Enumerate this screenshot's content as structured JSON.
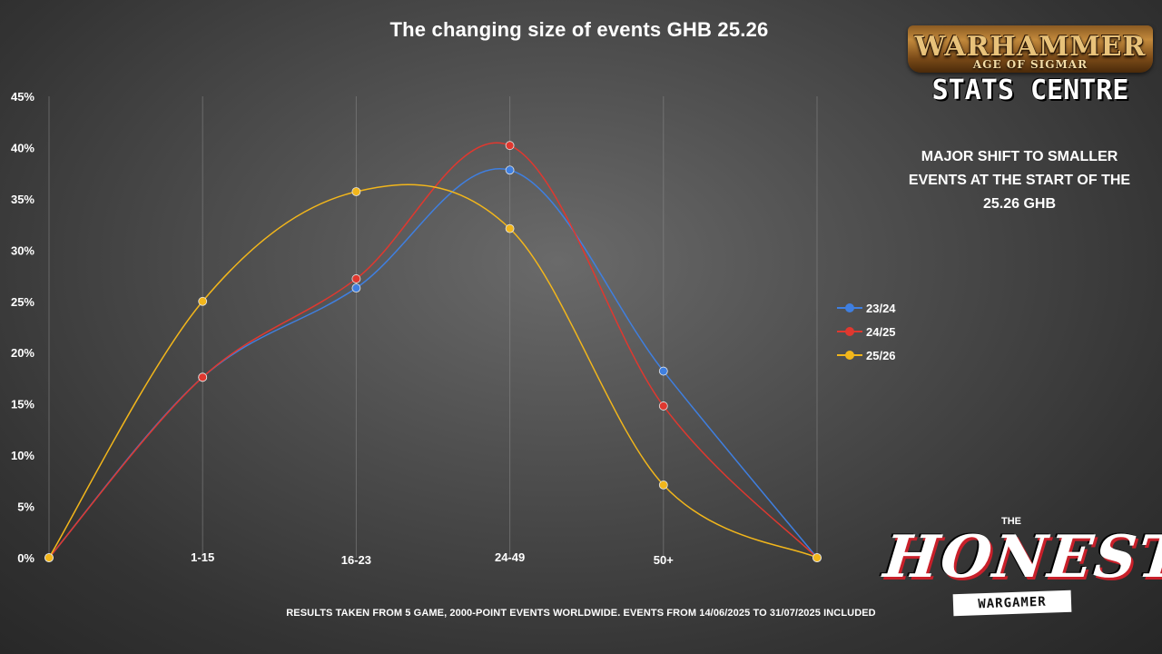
{
  "chart_data": {
    "type": "line",
    "title": "The changing size of events GHB 25.26",
    "categories": [
      "",
      "1-15",
      "16-23",
      "24-49",
      "50+",
      ""
    ],
    "y_ticks": [
      "0%",
      "5%",
      "10%",
      "15%",
      "20%",
      "25%",
      "30%",
      "35%",
      "40%",
      "45%"
    ],
    "ylim": [
      0,
      45
    ],
    "grid": "vertical",
    "legend_position": "right",
    "smooth": true,
    "series": [
      {
        "name": "23/24",
        "color": "#3f7fe0",
        "values": [
          0,
          17.6,
          26.3,
          37.8,
          18.2,
          0
        ]
      },
      {
        "name": "24/25",
        "color": "#e0382f",
        "values": [
          0,
          17.6,
          27.2,
          40.2,
          14.8,
          0
        ]
      },
      {
        "name": "25/26",
        "color": "#f2b61b",
        "values": [
          0,
          25.0,
          35.7,
          32.1,
          7.1,
          0
        ]
      }
    ]
  },
  "annotation": "MAJOR SHIFT TO SMALLER\nEVENTS AT THE START OF THE\n25.26 GHB",
  "footnote": "RESULTS TAKEN FROM 5 GAME, 2000-POINT EVENTS WORLDWIDE. EVENTS FROM 14/06/2025 TO 31/07/2025 INCLUDED",
  "logos": {
    "warhammer": {
      "name": "WARHAMMER",
      "subtitle": "AGE OF SIGMAR",
      "tagline": "STATS CENTRE"
    },
    "honest": {
      "prefix": "THE",
      "name": "HONEST",
      "subtitle": "WARGAMER"
    }
  }
}
